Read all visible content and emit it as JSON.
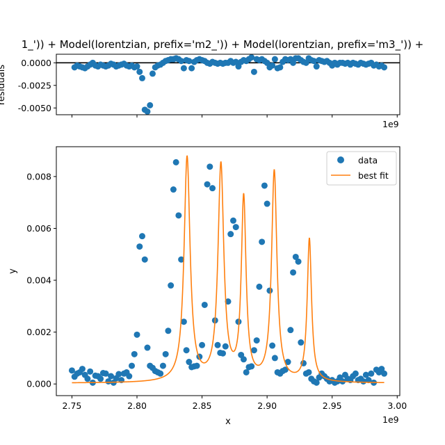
{
  "chart_data": [
    {
      "type": "scatter",
      "panel": "residuals",
      "title": "1_')) + Model(lorentzian, prefix='m2_')) + Model(lorentzian, prefix='m3_')) +",
      "ylabel": "residuals",
      "xlim": [
        2.738,
        3.002
      ],
      "ylim": [
        -0.00575,
        0.00095
      ],
      "x_scale_label": "1e9",
      "zero_line": true,
      "yticks": [
        0.0,
        -0.0025,
        -0.005
      ],
      "ytick_labels": [
        "0.0000",
        "-0.0025",
        "-0.0050"
      ],
      "xticks": [
        2.75,
        2.8,
        2.85,
        2.9,
        2.95,
        3.0
      ],
      "marker_color": "#1f77b4",
      "zero_line_color": "#000000",
      "x": [
        2.752,
        2.754,
        2.756,
        2.758,
        2.76,
        2.762,
        2.764,
        2.766,
        2.768,
        2.77,
        2.772,
        2.774,
        2.776,
        2.778,
        2.78,
        2.782,
        2.784,
        2.786,
        2.788,
        2.79,
        2.792,
        2.794,
        2.796,
        2.798,
        2.8,
        2.802,
        2.804,
        2.806,
        2.808,
        2.81,
        2.812,
        2.814,
        2.816,
        2.818,
        2.82,
        2.822,
        2.824,
        2.826,
        2.828,
        2.83,
        2.832,
        2.834,
        2.836,
        2.838,
        2.84,
        2.842,
        2.844,
        2.846,
        2.848,
        2.85,
        2.852,
        2.854,
        2.856,
        2.858,
        2.86,
        2.862,
        2.864,
        2.866,
        2.868,
        2.87,
        2.872,
        2.874,
        2.876,
        2.878,
        2.88,
        2.882,
        2.884,
        2.886,
        2.888,
        2.89,
        2.892,
        2.894,
        2.896,
        2.898,
        2.9,
        2.902,
        2.904,
        2.906,
        2.908,
        2.91,
        2.912,
        2.914,
        2.916,
        2.918,
        2.92,
        2.922,
        2.924,
        2.926,
        2.928,
        2.93,
        2.932,
        2.934,
        2.936,
        2.938,
        2.94,
        2.942,
        2.944,
        2.946,
        2.948,
        2.95,
        2.952,
        2.954,
        2.956,
        2.958,
        2.96,
        2.962,
        2.964,
        2.966,
        2.968,
        2.97,
        2.972,
        2.974,
        2.976,
        2.978,
        2.98,
        2.982,
        2.984,
        2.986,
        2.988,
        2.99
      ],
      "y": [
        -0.0005,
        -0.0003,
        -0.0004,
        -0.0005,
        -0.0006,
        -0.0004,
        -0.0002,
        0.0,
        -0.0003,
        -0.0004,
        -0.0002,
        -0.0003,
        -0.0004,
        -0.0003,
        -0.0001,
        -0.0002,
        -0.0004,
        -0.0003,
        -0.0002,
        -0.0001,
        -0.0003,
        -0.0004,
        -0.0003,
        -0.0005,
        -0.0004,
        -0.001,
        -0.0017,
        -0.0052,
        -0.0054,
        -0.0047,
        -0.0012,
        -0.0005,
        -0.0003,
        -0.0002,
        0.0,
        0.0002,
        0.0003,
        0.0004,
        0.0004,
        0.0005,
        0.0004,
        0.0002,
        -0.0006,
        0.0003,
        0.0002,
        -0.0006,
        0.0001,
        0.0003,
        0.0004,
        0.0003,
        0.0002,
        0.0,
        -0.0001,
        0.0001,
        0.0,
        -0.0001,
        0.0,
        -0.0001,
        0.0,
        0.0,
        0.0002,
        0.0,
        0.0001,
        -0.0004,
        0.0001,
        0.0003,
        0.0002,
        0.0004,
        0.0006,
        -0.001,
        0.0004,
        0.0003,
        0.0004,
        0.0002,
        0.0,
        -0.0005,
        -0.0003,
        0.0004,
        -0.0006,
        -0.0005,
        0.0001,
        0.0004,
        0.0003,
        0.0004,
        0.0,
        0.0005,
        0.0005,
        0.0003,
        0.0001,
        0.0,
        0.0005,
        0.0003,
        0.0002,
        -0.0004,
        0.0003,
        0.0002,
        0.0001,
        0.0002,
        0.0,
        -0.0003,
        0.0,
        -0.0002,
        0.0,
        0.0,
        -0.0001,
        0.0,
        -0.0002,
        0.0,
        -0.0001,
        -0.0002,
        0.0,
        -0.0001,
        -0.0002,
        -0.0001,
        0.0,
        -0.0003,
        -0.0002,
        -0.0004,
        -0.0003,
        -0.0005
      ]
    },
    {
      "type": "scatter",
      "panel": "fit",
      "xlabel": "x",
      "ylabel": "y",
      "xlim": [
        2.738,
        3.002
      ],
      "ylim": [
        -0.00045,
        0.00915
      ],
      "x_scale_label": "1e9",
      "xticks": [
        2.75,
        2.8,
        2.85,
        2.9,
        2.95,
        3.0
      ],
      "xtick_labels": [
        "2.75",
        "2.80",
        "2.85",
        "2.90",
        "2.95",
        "3.00"
      ],
      "yticks": [
        0.0,
        0.002,
        0.004,
        0.006,
        0.008
      ],
      "ytick_labels": [
        "0.000",
        "0.002",
        "0.004",
        "0.006",
        "0.008"
      ],
      "legend": {
        "location": "top-right",
        "entries": [
          "data",
          "best fit"
        ]
      },
      "series": [
        {
          "name": "data",
          "kind": "scatter",
          "color": "#1f77b4",
          "x": [
            2.75,
            2.752,
            2.754,
            2.756,
            2.758,
            2.76,
            2.762,
            2.764,
            2.766,
            2.768,
            2.77,
            2.772,
            2.774,
            2.776,
            2.778,
            2.78,
            2.782,
            2.784,
            2.786,
            2.788,
            2.79,
            2.792,
            2.794,
            2.796,
            2.798,
            2.8,
            2.802,
            2.804,
            2.806,
            2.808,
            2.81,
            2.812,
            2.814,
            2.816,
            2.818,
            2.82,
            2.822,
            2.824,
            2.826,
            2.828,
            2.83,
            2.832,
            2.834,
            2.836,
            2.838,
            2.84,
            2.842,
            2.844,
            2.846,
            2.848,
            2.85,
            2.852,
            2.854,
            2.856,
            2.858,
            2.86,
            2.862,
            2.864,
            2.866,
            2.868,
            2.87,
            2.872,
            2.874,
            2.876,
            2.878,
            2.88,
            2.882,
            2.884,
            2.886,
            2.888,
            2.89,
            2.892,
            2.894,
            2.896,
            2.898,
            2.9,
            2.902,
            2.904,
            2.906,
            2.908,
            2.91,
            2.912,
            2.914,
            2.916,
            2.918,
            2.92,
            2.922,
            2.924,
            2.926,
            2.928,
            2.93,
            2.932,
            2.934,
            2.936,
            2.938,
            2.94,
            2.942,
            2.944,
            2.946,
            2.948,
            2.95,
            2.952,
            2.954,
            2.956,
            2.958,
            2.96,
            2.962,
            2.964,
            2.966,
            2.968,
            2.97,
            2.972,
            2.974,
            2.976,
            2.978,
            2.98,
            2.982,
            2.984,
            2.986,
            2.988,
            2.99
          ],
          "y": [
            0.00052,
            0.00028,
            0.0004,
            0.00045,
            0.00058,
            0.00035,
            0.0002,
            0.00048,
            5e-05,
            0.00032,
            0.0003,
            0.0002,
            0.00042,
            0.0004,
            0.0001,
            0.0003,
            5e-05,
            0.00022,
            0.00038,
            0.00015,
            0.0004,
            0.00045,
            0.0003,
            0.0007,
            0.00115,
            0.0019,
            0.0053,
            0.0057,
            0.0048,
            0.0014,
            0.0007,
            0.00062,
            0.0005,
            0.00045,
            0.0004,
            0.0007,
            0.00115,
            0.00205,
            0.0038,
            0.0075,
            0.00855,
            0.0065,
            0.0048,
            0.0024,
            0.0013,
            0.00085,
            0.00065,
            0.00068,
            0.0007,
            0.00105,
            0.0015,
            0.00305,
            0.0077,
            0.00838,
            0.00755,
            0.00245,
            0.0015,
            0.0012,
            0.00118,
            0.00145,
            0.00318,
            0.00578,
            0.0063,
            0.00605,
            0.0024,
            0.00112,
            0.00095,
            0.00045,
            0.00065,
            0.00068,
            0.0013,
            0.00168,
            0.00375,
            0.00548,
            0.00765,
            0.00695,
            0.0036,
            0.00148,
            0.001,
            0.00045,
            0.0004,
            0.0005,
            0.00055,
            0.00085,
            0.00208,
            0.0043,
            0.0049,
            0.00472,
            0.0016,
            0.0008,
            0.0004,
            0.00045,
            0.0002,
            0.0001,
            5e-05,
            0.00025,
            0.0004,
            0.0003,
            0.0002,
            0.0001,
            0.00015,
            5e-05,
            0.0001,
            0.00025,
            0.0001,
            0.00035,
            0.0002,
            0.00015,
            0.0003,
            0.0004,
            0.00015,
            0.0002,
            0.0001,
            0.00035,
            0.00015,
            0.0004,
            5e-05,
            0.00055,
            0.00045,
            0.00058,
            0.0004
          ]
        },
        {
          "name": "best fit",
          "kind": "line",
          "color": "#ff7f0e",
          "baseline": 3e-05,
          "peaks": [
            {
              "center": 2.8385,
              "amplitude": 0.00865,
              "hwhm": 0.0028
            },
            {
              "center": 2.8645,
              "amplitude": 0.0083,
              "hwhm": 0.0027
            },
            {
              "center": 2.882,
              "amplitude": 0.007,
              "hwhm": 0.0022
            },
            {
              "center": 2.9055,
              "amplitude": 0.0081,
              "hwhm": 0.0025
            },
            {
              "center": 2.9325,
              "amplitude": 0.0055,
              "hwhm": 0.002
            }
          ]
        }
      ]
    }
  ]
}
